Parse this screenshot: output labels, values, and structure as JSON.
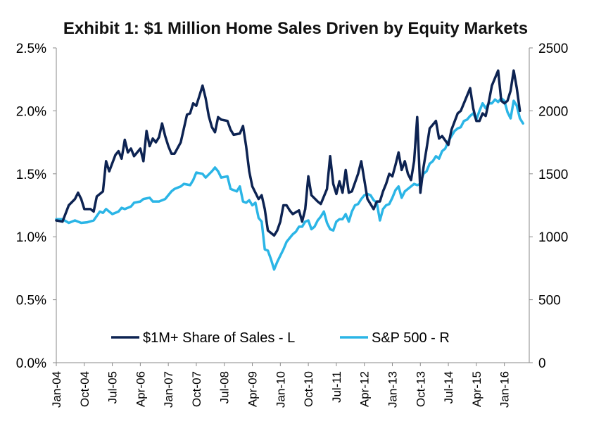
{
  "chart_data": {
    "type": "line",
    "title": "Exhibit 1: $1 Million Home Sales Driven by Equity Markets",
    "xlabel": "",
    "ylabel": "",
    "y_left_ticks": [
      "0.0%",
      "0.5%",
      "1.0%",
      "1.5%",
      "2.0%",
      "2.5%"
    ],
    "y_right_ticks": [
      "0",
      "500",
      "1000",
      "1500",
      "2000",
      "2500"
    ],
    "ylim_left": [
      0,
      2.5
    ],
    "ylim_right": [
      0,
      2500
    ],
    "x_start": "Jan-04",
    "x_end": "Apr-16",
    "x_tick_labels": [
      "Jan-04",
      "Oct-04",
      "Jul-05",
      "Apr-06",
      "Jan-07",
      "Oct-07",
      "Jul-08",
      "Apr-09",
      "Jan-10",
      "Oct-10",
      "Jul-11",
      "Apr-12",
      "Jan-13",
      "Oct-13",
      "Jul-14",
      "Apr-15",
      "Jan-16"
    ],
    "grid": false,
    "legend_position": "bottom",
    "series": [
      {
        "name": "$1M+ Share of Sales - L",
        "axis": "left",
        "color": "#0d2352",
        "values": [
          [
            0,
            1.13
          ],
          [
            2,
            1.12
          ],
          [
            4,
            1.25
          ],
          [
            6,
            1.3
          ],
          [
            7,
            1.35
          ],
          [
            8,
            1.3
          ],
          [
            9,
            1.22
          ],
          [
            11,
            1.22
          ],
          [
            12,
            1.2
          ],
          [
            13,
            1.32
          ],
          [
            15,
            1.36
          ],
          [
            16,
            1.6
          ],
          [
            17,
            1.52
          ],
          [
            19,
            1.65
          ],
          [
            20,
            1.68
          ],
          [
            21,
            1.62
          ],
          [
            22,
            1.77
          ],
          [
            23,
            1.67
          ],
          [
            24,
            1.7
          ],
          [
            25,
            1.64
          ],
          [
            27,
            1.7
          ],
          [
            28,
            1.6
          ],
          [
            29,
            1.84
          ],
          [
            30,
            1.72
          ],
          [
            31,
            1.78
          ],
          [
            32,
            1.75
          ],
          [
            33,
            1.79
          ],
          [
            34,
            1.9
          ],
          [
            35,
            1.8
          ],
          [
            36,
            1.72
          ],
          [
            37,
            1.66
          ],
          [
            38,
            1.66
          ],
          [
            40,
            1.75
          ],
          [
            42,
            1.97
          ],
          [
            43,
            1.98
          ],
          [
            44,
            2.06
          ],
          [
            45,
            2.04
          ],
          [
            46,
            2.12
          ],
          [
            47,
            2.2
          ],
          [
            48,
            2.1
          ],
          [
            49,
            1.96
          ],
          [
            50,
            1.87
          ],
          [
            51,
            1.83
          ],
          [
            52,
            1.95
          ],
          [
            53,
            1.93
          ],
          [
            55,
            1.92
          ],
          [
            56,
            1.85
          ],
          [
            57,
            1.81
          ],
          [
            59,
            1.82
          ],
          [
            60,
            1.88
          ],
          [
            61,
            1.72
          ],
          [
            62,
            1.52
          ],
          [
            63,
            1.4
          ],
          [
            65,
            1.3
          ],
          [
            66,
            1.33
          ],
          [
            67,
            1.22
          ],
          [
            68,
            1.05
          ],
          [
            70,
            1.01
          ],
          [
            71,
            1.05
          ],
          [
            72,
            1.12
          ],
          [
            73,
            1.25
          ],
          [
            74,
            1.25
          ],
          [
            75,
            1.21
          ],
          [
            76,
            1.18
          ],
          [
            78,
            1.21
          ],
          [
            79,
            1.12
          ],
          [
            80,
            1.22
          ],
          [
            81,
            1.48
          ],
          [
            82,
            1.33
          ],
          [
            84,
            1.28
          ],
          [
            85,
            1.26
          ],
          [
            87,
            1.38
          ],
          [
            88,
            1.64
          ],
          [
            89,
            1.42
          ],
          [
            90,
            1.34
          ],
          [
            91,
            1.44
          ],
          [
            92,
            1.35
          ],
          [
            93,
            1.53
          ],
          [
            94,
            1.35
          ],
          [
            95,
            1.36
          ],
          [
            96,
            1.43
          ],
          [
            97,
            1.5
          ],
          [
            98,
            1.6
          ],
          [
            99,
            1.45
          ],
          [
            100,
            1.3
          ],
          [
            102,
            1.22
          ],
          [
            103,
            1.28
          ],
          [
            104,
            1.28
          ],
          [
            105,
            1.36
          ],
          [
            106,
            1.42
          ],
          [
            107,
            1.5
          ],
          [
            108,
            1.48
          ],
          [
            109,
            1.57
          ],
          [
            110,
            1.67
          ],
          [
            111,
            1.53
          ],
          [
            112,
            1.6
          ],
          [
            113,
            1.5
          ],
          [
            114,
            1.45
          ],
          [
            115,
            1.6
          ],
          [
            116,
            1.95
          ],
          [
            117,
            1.35
          ],
          [
            118,
            1.55
          ],
          [
            119,
            1.7
          ],
          [
            120,
            1.86
          ],
          [
            122,
            1.92
          ],
          [
            123,
            1.78
          ],
          [
            124,
            1.8
          ],
          [
            126,
            1.73
          ],
          [
            127,
            1.85
          ],
          [
            129,
            1.98
          ],
          [
            130,
            2.0
          ],
          [
            132,
            2.12
          ],
          [
            133,
            2.18
          ],
          [
            134,
            2.02
          ],
          [
            135,
            1.92
          ],
          [
            136,
            1.92
          ],
          [
            137,
            1.98
          ],
          [
            138,
            1.96
          ],
          [
            139,
            2.07
          ],
          [
            140,
            2.2
          ],
          [
            142,
            2.32
          ],
          [
            143,
            2.08
          ],
          [
            144,
            2.06
          ],
          [
            145,
            2.08
          ],
          [
            146,
            2.16
          ],
          [
            147,
            2.32
          ],
          [
            148,
            2.18
          ],
          [
            149,
            2.0
          ]
        ]
      },
      {
        "name": "S&P 500 - R",
        "axis": "right",
        "color": "#2bb5e6",
        "values": [
          [
            0,
            1140
          ],
          [
            2,
            1140
          ],
          [
            4,
            1110
          ],
          [
            6,
            1130
          ],
          [
            7,
            1120
          ],
          [
            8,
            1110
          ],
          [
            10,
            1115
          ],
          [
            12,
            1130
          ],
          [
            14,
            1200
          ],
          [
            15,
            1190
          ],
          [
            16,
            1220
          ],
          [
            18,
            1180
          ],
          [
            20,
            1200
          ],
          [
            21,
            1230
          ],
          [
            22,
            1220
          ],
          [
            24,
            1240
          ],
          [
            25,
            1270
          ],
          [
            27,
            1280
          ],
          [
            28,
            1300
          ],
          [
            30,
            1310
          ],
          [
            31,
            1280
          ],
          [
            33,
            1280
          ],
          [
            35,
            1300
          ],
          [
            37,
            1360
          ],
          [
            38,
            1380
          ],
          [
            40,
            1400
          ],
          [
            41,
            1420
          ],
          [
            43,
            1410
          ],
          [
            44,
            1450
          ],
          [
            45,
            1510
          ],
          [
            47,
            1500
          ],
          [
            48,
            1470
          ],
          [
            50,
            1520
          ],
          [
            51,
            1550
          ],
          [
            52,
            1520
          ],
          [
            53,
            1470
          ],
          [
            55,
            1480
          ],
          [
            56,
            1380
          ],
          [
            58,
            1360
          ],
          [
            59,
            1400
          ],
          [
            60,
            1280
          ],
          [
            61,
            1270
          ],
          [
            62,
            1290
          ],
          [
            63,
            1250
          ],
          [
            64,
            1270
          ],
          [
            65,
            1150
          ],
          [
            66,
            1120
          ],
          [
            67,
            900
          ],
          [
            68,
            890
          ],
          [
            69,
            820
          ],
          [
            70,
            740
          ],
          [
            71,
            800
          ],
          [
            72,
            850
          ],
          [
            73,
            900
          ],
          [
            74,
            960
          ],
          [
            75,
            990
          ],
          [
            76,
            1020
          ],
          [
            77,
            1040
          ],
          [
            78,
            1080
          ],
          [
            79,
            1080
          ],
          [
            80,
            1120
          ],
          [
            81,
            1130
          ],
          [
            82,
            1060
          ],
          [
            83,
            1080
          ],
          [
            84,
            1130
          ],
          [
            85,
            1160
          ],
          [
            86,
            1200
          ],
          [
            87,
            1110
          ],
          [
            88,
            1060
          ],
          [
            89,
            1050
          ],
          [
            90,
            1120
          ],
          [
            91,
            1140
          ],
          [
            92,
            1140
          ],
          [
            93,
            1180
          ],
          [
            94,
            1120
          ],
          [
            95,
            1200
          ],
          [
            96,
            1250
          ],
          [
            97,
            1260
          ],
          [
            98,
            1300
          ],
          [
            99,
            1330
          ],
          [
            100,
            1340
          ],
          [
            101,
            1330
          ],
          [
            102,
            1290
          ],
          [
            103,
            1270
          ],
          [
            104,
            1130
          ],
          [
            105,
            1220
          ],
          [
            106,
            1250
          ],
          [
            107,
            1260
          ],
          [
            108,
            1310
          ],
          [
            109,
            1370
          ],
          [
            110,
            1400
          ],
          [
            111,
            1310
          ],
          [
            112,
            1360
          ],
          [
            113,
            1380
          ],
          [
            114,
            1400
          ],
          [
            115,
            1420
          ],
          [
            116,
            1410
          ],
          [
            117,
            1420
          ],
          [
            118,
            1500
          ],
          [
            119,
            1520
          ],
          [
            120,
            1580
          ],
          [
            121,
            1600
          ],
          [
            122,
            1640
          ],
          [
            123,
            1620
          ],
          [
            124,
            1680
          ],
          [
            125,
            1700
          ],
          [
            126,
            1760
          ],
          [
            127,
            1800
          ],
          [
            128,
            1840
          ],
          [
            129,
            1860
          ],
          [
            130,
            1870
          ],
          [
            131,
            1920
          ],
          [
            132,
            1930
          ],
          [
            133,
            1960
          ],
          [
            134,
            1980
          ],
          [
            135,
            1930
          ],
          [
            136,
            2000
          ],
          [
            137,
            2060
          ],
          [
            138,
            2020
          ],
          [
            139,
            2060
          ],
          [
            140,
            2060
          ],
          [
            141,
            2090
          ],
          [
            142,
            2070
          ],
          [
            143,
            2100
          ],
          [
            144,
            2080
          ],
          [
            145,
            1990
          ],
          [
            146,
            1940
          ],
          [
            147,
            2080
          ],
          [
            148,
            2040
          ],
          [
            149,
            1940
          ],
          [
            150,
            1900
          ]
        ]
      }
    ]
  }
}
